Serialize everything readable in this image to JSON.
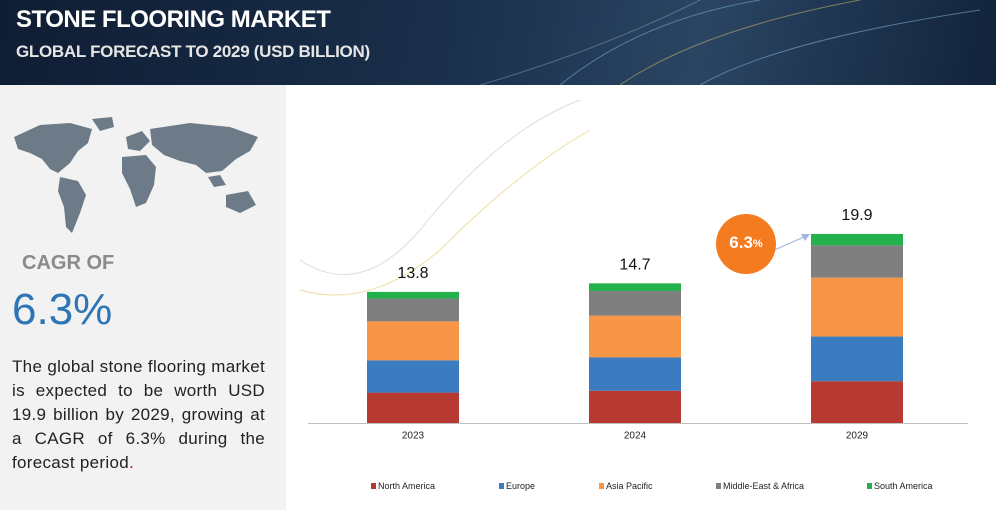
{
  "header": {
    "title": "STONE FLOORING MARKET",
    "subtitle": "GLOBAL FORECAST TO 2029 (USD BILLION)"
  },
  "sidebar": {
    "cagr_label": "CAGR OF",
    "cagr_value": "6.3%",
    "paragraph": "The global stone flooring market is expected to be worth USD 19.9 billion by 2029, growing at a CAGR of 6.3% during the forecast period",
    "paragraph_end": "."
  },
  "chart_data": {
    "type": "stacked_bar",
    "categories": [
      "2023",
      "2024",
      "2029"
    ],
    "series": [
      {
        "name": "North America",
        "color": "#b63a32",
        "values": [
          3.2,
          3.4,
          4.4
        ]
      },
      {
        "name": "Europe",
        "color": "#3b7bbf",
        "values": [
          3.4,
          3.5,
          4.7
        ]
      },
      {
        "name": "Asia Pacific",
        "color": "#f79646",
        "values": [
          4.1,
          4.4,
          6.2
        ]
      },
      {
        "name": "Middle-East & Africa",
        "color": "#7f7f7f",
        "values": [
          2.4,
          2.6,
          3.4
        ]
      },
      {
        "name": "South America",
        "color": "#22b14c",
        "values": [
          0.7,
          0.8,
          1.2
        ]
      }
    ],
    "totals": [
      13.8,
      14.7,
      19.9
    ],
    "cagr_badge": {
      "value": "6.3",
      "unit": "%",
      "color": "#f47b20"
    }
  }
}
